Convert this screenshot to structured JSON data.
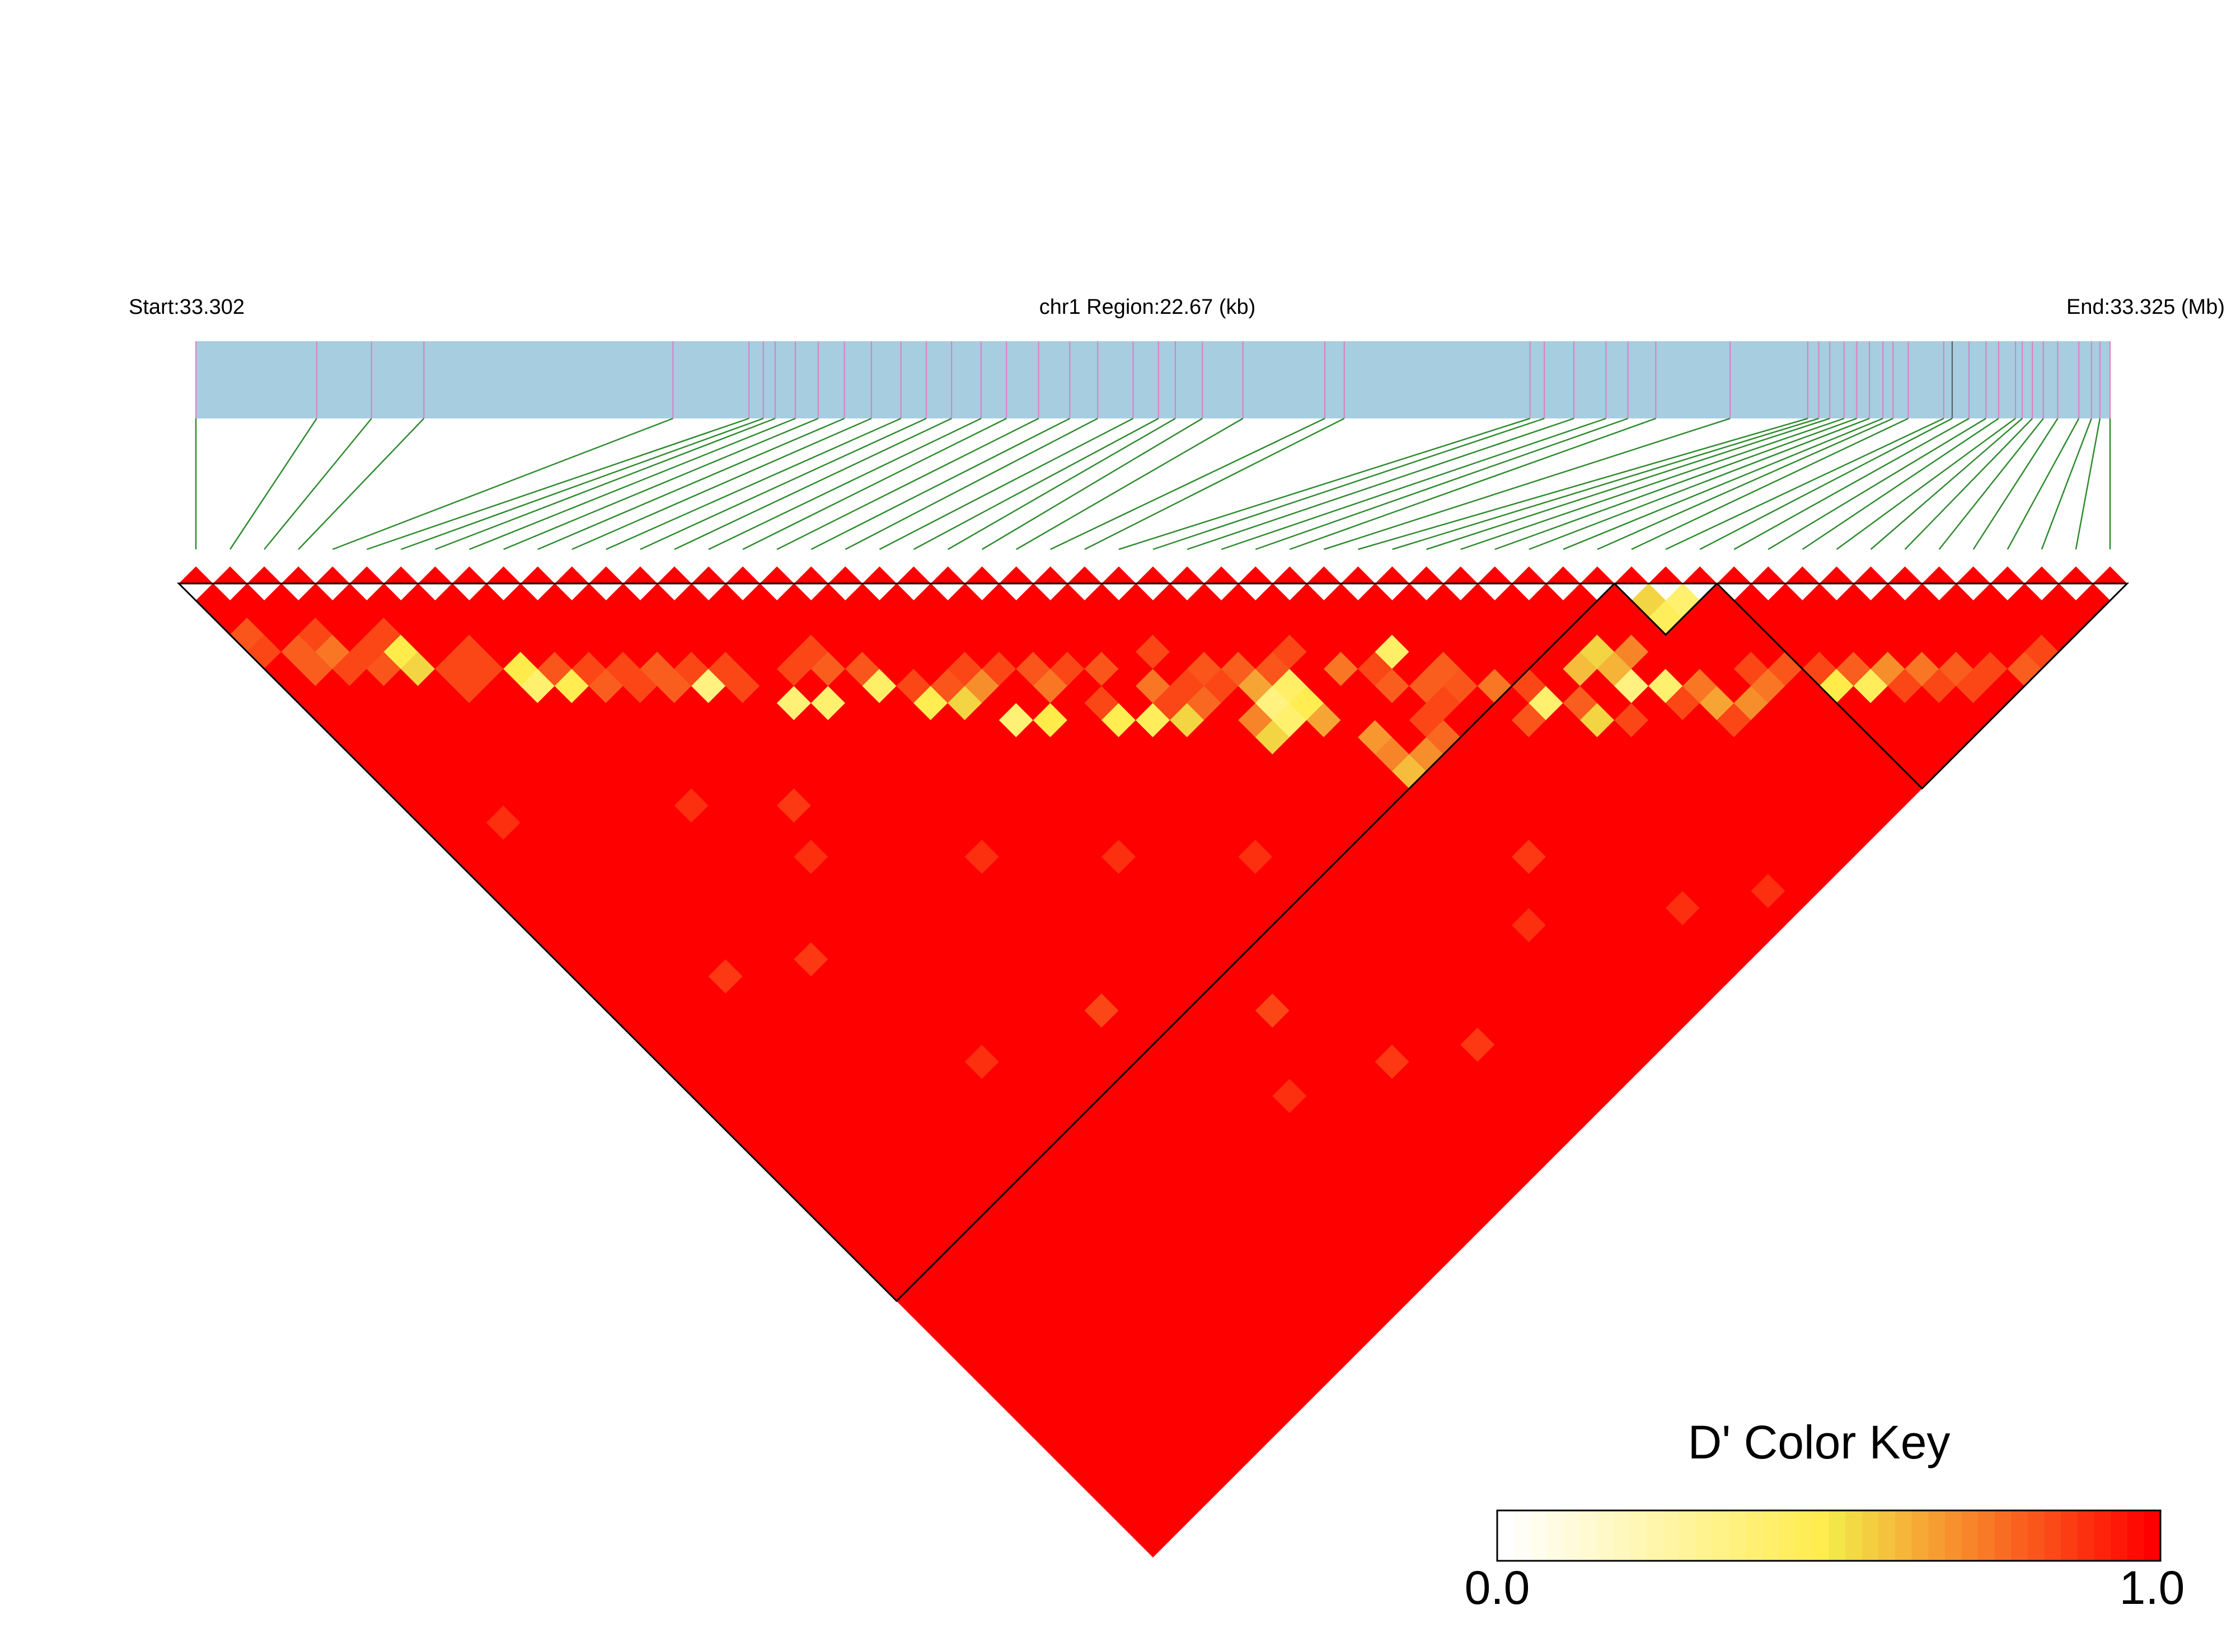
{
  "chart_data": {
    "type": "heatmap",
    "title": "",
    "header": {
      "start_label": "Start:33.302",
      "region_label": "chr1 Region:22.67 (kb)",
      "end_label": "End:33.325 (Mb)"
    },
    "snp_count": 57,
    "snp_positions_kb": [
      0.0,
      1.43,
      2.08,
      2.7,
      5.65,
      6.55,
      6.72,
      6.86,
      7.1,
      7.37,
      7.68,
      8.0,
      8.35,
      8.65,
      8.95,
      9.3,
      9.6,
      9.98,
      10.35,
      10.68,
      11.1,
      11.4,
      11.6,
      11.92,
      12.4,
      13.37,
      13.6,
      15.8,
      15.97,
      16.32,
      16.7,
      16.96,
      17.29,
      18.17,
      19.09,
      19.22,
      19.35,
      19.52,
      19.67,
      19.82,
      19.98,
      20.1,
      20.28,
      20.7,
      20.8,
      21.0,
      21.2,
      21.35,
      21.55,
      21.63,
      21.75,
      21.88,
      22.05,
      22.3,
      22.45,
      22.55,
      22.67
    ],
    "ld_blocks": [
      {
        "first_snp": 1,
        "last_snp": 42
      },
      {
        "first_snp": 43,
        "last_snp": 45
      },
      {
        "first_snp": 46,
        "last_snp": 57
      }
    ],
    "ld_values": {
      "default": 1.0,
      "cells": [
        [
          5,
          9,
          0.5
        ],
        [
          5,
          10,
          0.55
        ],
        [
          8,
          13,
          0.5
        ],
        [
          8,
          14,
          0.4
        ],
        [
          9,
          15,
          0.48
        ],
        [
          13,
          19,
          0.35
        ],
        [
          15,
          22,
          0.38
        ],
        [
          16,
          23,
          0.4
        ],
        [
          18,
          24,
          0.42
        ],
        [
          19,
          26,
          0.48
        ],
        [
          20,
          27,
          0.55
        ],
        [
          21,
          29,
          0.38
        ],
        [
          22,
          30,
          0.5
        ],
        [
          24,
          32,
          0.48
        ],
        [
          25,
          33,
          0.45
        ],
        [
          26,
          34,
          0.55
        ],
        [
          21,
          27,
          0.7
        ],
        [
          23,
          29,
          0.75
        ],
        [
          26,
          32,
          0.75
        ],
        [
          2,
          6,
          0.8
        ],
        [
          3,
          7,
          0.75
        ],
        [
          4,
          8,
          0.85
        ],
        [
          6,
          12,
          0.85
        ],
        [
          10,
          16,
          0.8
        ],
        [
          11,
          17,
          0.85
        ],
        [
          12,
          18,
          0.8
        ],
        [
          14,
          20,
          0.85
        ],
        [
          17,
          22,
          0.8
        ],
        [
          20,
          26,
          0.82
        ],
        [
          23,
          28,
          0.82
        ],
        [
          28,
          33,
          0.82
        ],
        [
          27,
          34,
          0.78
        ],
        [
          28,
          36,
          0.72
        ],
        [
          29,
          34,
          0.8
        ],
        [
          30,
          38,
          0.65
        ],
        [
          28,
          37,
          0.55
        ],
        [
          29,
          36,
          0.35
        ],
        [
          29,
          37,
          0.4
        ],
        [
          31,
          35,
          0.85
        ],
        [
          30,
          36,
          0.42
        ],
        [
          32,
          37,
          0.75
        ],
        [
          34,
          38,
          0.42
        ],
        [
          29,
          35,
          0.65
        ],
        [
          30,
          37,
          0.48
        ],
        [
          33,
          39,
          0.8
        ],
        [
          35,
          41,
          0.82
        ],
        [
          31,
          42,
          0.6
        ],
        [
          32,
          42,
          0.7
        ],
        [
          33,
          42,
          0.78
        ],
        [
          31,
          40,
          0.68
        ],
        [
          31,
          41,
          0.72
        ],
        [
          36,
          42,
          0.75
        ],
        [
          37,
          44,
          0.4
        ],
        [
          38,
          46,
          0.55
        ],
        [
          40,
          46,
          0.35
        ],
        [
          41,
          47,
          0.4
        ],
        [
          42,
          48,
          0.75
        ],
        [
          44,
          50,
          0.75
        ],
        [
          42,
          49,
          0.65
        ],
        [
          38,
          45,
          0.8
        ],
        [
          35,
          40,
          0.8
        ],
        [
          39,
          44,
          0.6
        ],
        [
          40,
          45,
          0.62
        ],
        [
          41,
          45,
          0.72
        ],
        [
          40,
          44,
          0.55
        ],
        [
          43,
          45,
          0.45
        ],
        [
          44,
          45,
          0.4
        ],
        [
          43,
          44,
          0.55
        ],
        [
          46,
          52,
          0.5
        ],
        [
          47,
          53,
          0.45
        ],
        [
          48,
          53,
          0.7
        ],
        [
          49,
          54,
          0.75
        ],
        [
          47,
          52,
          0.8
        ],
        [
          48,
          54,
          0.85
        ],
        [
          50,
          55,
          0.8
        ],
        [
          51,
          56,
          0.85
        ],
        [
          45,
          50,
          0.82
        ],
        [
          52,
          57,
          0.8
        ],
        [
          43,
          50,
          0.7
        ],
        [
          39,
          47,
          0.85
        ],
        [
          36,
          44,
          0.82
        ],
        [
          34,
          40,
          0.8
        ],
        [
          33,
          38,
          0.85
        ],
        [
          30,
          35,
          0.82
        ],
        [
          27,
          31,
          0.85
        ],
        [
          25,
          30,
          0.82
        ],
        [
          24,
          29,
          0.85
        ],
        [
          22,
          27,
          0.85
        ],
        [
          18,
          23,
          0.82
        ],
        [
          13,
          18,
          0.85
        ],
        [
          12,
          17,
          0.8
        ],
        [
          10,
          15,
          0.85
        ],
        [
          9,
          14,
          0.82
        ],
        [
          7,
          12,
          0.85
        ],
        [
          6,
          11,
          0.85
        ],
        [
          4,
          9,
          0.82
        ],
        [
          3,
          8,
          0.85
        ],
        [
          2,
          7,
          0.8
        ],
        [
          1,
          5,
          0.85
        ],
        [
          1,
          4,
          0.82
        ],
        [
          3,
          6,
          0.85
        ],
        [
          5,
          8,
          0.85
        ],
        [
          7,
          11,
          0.85
        ],
        [
          11,
          16,
          0.85
        ],
        [
          14,
          19,
          0.85
        ],
        [
          16,
          21,
          0.85
        ],
        [
          17,
          21,
          0.85
        ],
        [
          19,
          25,
          0.85
        ],
        [
          21,
          26,
          0.85
        ],
        [
          24,
          31,
          0.85
        ],
        [
          26,
          33,
          0.85
        ],
        [
          27,
          33,
          0.85
        ],
        [
          28,
          34,
          0.85
        ],
        [
          33,
          41,
          0.85
        ],
        [
          34,
          41,
          0.85
        ],
        [
          37,
          43,
          0.85
        ],
        [
          41,
          48,
          0.85
        ],
        [
          42,
          50,
          0.85
        ],
        [
          44,
          49,
          0.85
        ],
        [
          46,
          51,
          0.85
        ],
        [
          49,
          55,
          0.85
        ],
        [
          50,
          56,
          0.85
        ],
        [
          53,
          57,
          0.85
        ],
        [
          15,
          40,
          0.85
        ],
        [
          20,
          45,
          0.85
        ],
        [
          12,
          25,
          0.88
        ],
        [
          8,
          30,
          0.88
        ],
        [
          5,
          28,
          0.88
        ],
        [
          10,
          38,
          0.9
        ],
        [
          18,
          48,
          0.9
        ],
        [
          22,
          50,
          0.88
        ],
        [
          25,
          52,
          0.88
        ],
        [
          16,
          32,
          0.9
        ],
        [
          24,
          40,
          0.9
        ],
        [
          30,
          50,
          0.9
        ],
        [
          9,
          22,
          0.9
        ],
        [
          3,
          17,
          0.9
        ],
        [
          11,
          27,
          0.9
        ],
        [
          20,
          36,
          0.9
        ],
        [
          32,
          48,
          0.88
        ],
        [
          35,
          54,
          0.9
        ],
        [
          38,
          56,
          0.9
        ]
      ]
    },
    "color_key": {
      "title": "D' Color Key",
      "min_label": "0.0",
      "max_label": "1.0",
      "min": 0.0,
      "max": 1.0,
      "colors": [
        "#ffffff",
        "#f2ec4a",
        "#ff0000"
      ]
    },
    "colors": {
      "chromosome_bar": "#a6cde0",
      "snp_tick": "#e07cc0",
      "connector": "#2e8b2e",
      "high_ld": "#ff0000",
      "block_outline": "#000000"
    }
  }
}
